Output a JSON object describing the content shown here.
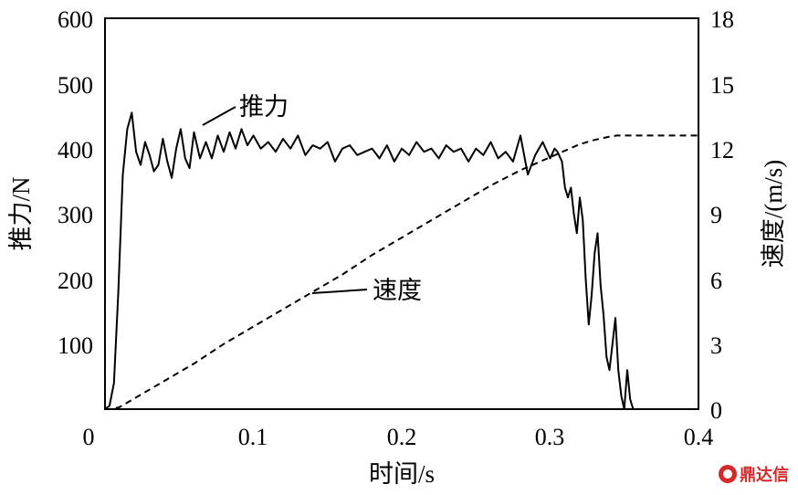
{
  "chart_data": {
    "type": "line",
    "xlabel": "时间/s",
    "ylabel_left": "推力/N",
    "ylabel_right": "速度/(m/s)",
    "xlim": [
      0,
      0.4
    ],
    "ylim_left": [
      0,
      600
    ],
    "ylim_right": [
      0,
      18
    ],
    "x_ticks": [
      "0",
      "0.1",
      "0.2",
      "0.3",
      "0.4"
    ],
    "y_ticks_left": [
      "100",
      "200",
      "300",
      "400",
      "500",
      "600"
    ],
    "y_ticks_right": [
      "0",
      "3",
      "6",
      "9",
      "12",
      "15",
      "18"
    ],
    "grid": false,
    "annotations": [
      {
        "text": "推力",
        "series": "thrust"
      },
      {
        "text": "速度",
        "series": "speed"
      }
    ],
    "series": [
      {
        "id": "thrust",
        "axis": "left",
        "style": "solid",
        "x": [
          0,
          0.003,
          0.006,
          0.009,
          0.012,
          0.015,
          0.018,
          0.021,
          0.024,
          0.027,
          0.03,
          0.033,
          0.036,
          0.039,
          0.042,
          0.045,
          0.048,
          0.051,
          0.054,
          0.057,
          0.06,
          0.064,
          0.068,
          0.072,
          0.076,
          0.08,
          0.084,
          0.088,
          0.092,
          0.096,
          0.1,
          0.105,
          0.11,
          0.115,
          0.12,
          0.125,
          0.13,
          0.135,
          0.14,
          0.145,
          0.15,
          0.155,
          0.16,
          0.165,
          0.17,
          0.175,
          0.18,
          0.185,
          0.19,
          0.195,
          0.2,
          0.205,
          0.21,
          0.215,
          0.22,
          0.225,
          0.23,
          0.235,
          0.24,
          0.245,
          0.25,
          0.255,
          0.26,
          0.265,
          0.27,
          0.275,
          0.28,
          0.285,
          0.29,
          0.295,
          0.3,
          0.303,
          0.305,
          0.308,
          0.31,
          0.312,
          0.314,
          0.316,
          0.318,
          0.32,
          0.322,
          0.324,
          0.326,
          0.328,
          0.33,
          0.332,
          0.334,
          0.336,
          0.338,
          0.34,
          0.342,
          0.344,
          0.346,
          0.348,
          0.35,
          0.352,
          0.354,
          0.356,
          0.358,
          0.36,
          0.37,
          0.4
        ],
        "y": [
          0,
          5,
          40,
          180,
          360,
          430,
          455,
          395,
          375,
          410,
          390,
          365,
          375,
          415,
          380,
          355,
          400,
          430,
          385,
          370,
          425,
          385,
          410,
          385,
          420,
          395,
          425,
          400,
          430,
          405,
          420,
          400,
          410,
          395,
          415,
          400,
          420,
          390,
          405,
          400,
          410,
          380,
          400,
          405,
          390,
          395,
          400,
          385,
          405,
          380,
          400,
          390,
          410,
          395,
          400,
          385,
          405,
          395,
          400,
          380,
          400,
          390,
          410,
          385,
          395,
          380,
          420,
          360,
          390,
          410,
          385,
          400,
          395,
          380,
          340,
          325,
          340,
          300,
          270,
          325,
          290,
          200,
          130,
          175,
          240,
          270,
          190,
          145,
          80,
          60,
          100,
          140,
          60,
          20,
          0,
          60,
          15,
          0,
          0,
          0,
          0,
          0
        ]
      },
      {
        "id": "speed",
        "axis": "right",
        "style": "dashed",
        "x": [
          0,
          0.005,
          0.01,
          0.02,
          0.04,
          0.06,
          0.08,
          0.1,
          0.12,
          0.14,
          0.16,
          0.18,
          0.2,
          0.22,
          0.24,
          0.26,
          0.28,
          0.29,
          0.3,
          0.31,
          0.32,
          0.33,
          0.34,
          0.345,
          0.35,
          0.36,
          0.38,
          0.4
        ],
        "y": [
          0,
          0,
          0.1,
          0.5,
          1.3,
          2.1,
          3.0,
          3.8,
          4.6,
          5.4,
          6.2,
          7.1,
          7.9,
          8.7,
          9.5,
          10.3,
          11.0,
          11.3,
          11.6,
          11.9,
          12.2,
          12.4,
          12.55,
          12.6,
          12.6,
          12.6,
          12.6,
          12.6
        ]
      }
    ]
  },
  "watermark": {
    "text": "鼎达信"
  }
}
